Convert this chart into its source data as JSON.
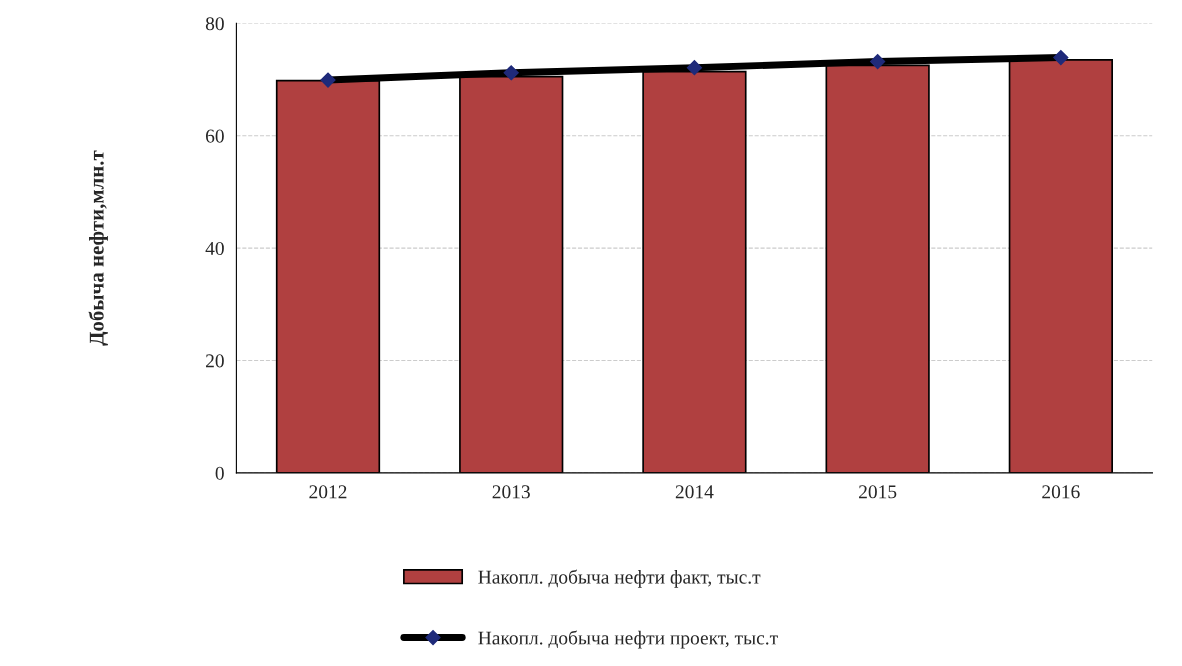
{
  "chart_data": {
    "type": "bar",
    "ylabel": "Добыча нефти,млн.т",
    "categories": [
      "2012",
      "2013",
      "2014",
      "2015",
      "2016"
    ],
    "series": [
      {
        "name": "Накопл. добыча нефти факт, тыс.т",
        "color": "#b04040",
        "values": [
          69.8,
          70.5,
          71.4,
          72.5,
          73.5
        ]
      },
      {
        "name": "Накопл. добыча нефти проект, тыс.т",
        "type": "line",
        "color": "#000000",
        "values": [
          69.9,
          71.2,
          72.1,
          73.2,
          73.9
        ]
      }
    ],
    "ylim": [
      0,
      80
    ],
    "yticks": [
      0,
      20,
      40,
      60,
      80
    ],
    "grid": "y",
    "legend": "bottom",
    "marker": "diamond",
    "line_style": "solid"
  }
}
